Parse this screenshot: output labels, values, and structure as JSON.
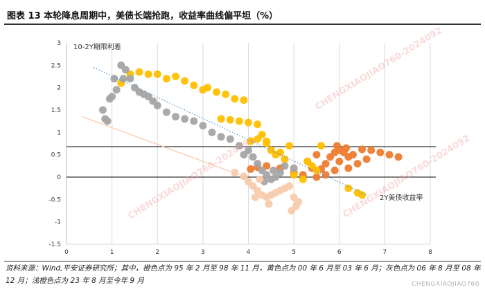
{
  "figure_title": "图表 13   本轮降息周期中，美债长端抢跑，收益率曲线偏平坦（%）",
  "source_note": "资料来源：Wind,平安证券研究所；其中，橙色点为 95 年 2 月至 98 年 11 月，黄色点为 00 年 6 月至 03 年 6 月；灰色点为 06 年 8 月至 08 年 12 月；浅橙色点为 23 年 8 月至今年 9 月",
  "footer_watermark": "CHENGXIAOJIAO760",
  "watermark_text": "CHENGXIAOJIAO760-2024092",
  "chart_data": {
    "type": "scatter",
    "ylabel": "10-2Y期限利差",
    "xlabel": "2Y美债收益率",
    "xlim": [
      0,
      8
    ],
    "ylim": [
      -1.5,
      3
    ],
    "x_ticks": [
      "0",
      "1",
      "2",
      "3",
      "4",
      "5",
      "6",
      "7",
      "8"
    ],
    "y_ticks": [
      "-1.5",
      "-1",
      "-0.5",
      "0",
      "0.5",
      "1",
      "1.5",
      "2",
      "2.5",
      "3"
    ],
    "grid": "vertical",
    "reference_line_y": 0.68,
    "series": [
      {
        "color": "#ED7D31",
        "points": [
          [
            4.05,
            0.18
          ],
          [
            4.2,
            0.22
          ],
          [
            4.4,
            0.25
          ],
          [
            4.7,
            0.2
          ],
          [
            5.0,
            0.1
          ],
          [
            5.2,
            0.05
          ],
          [
            5.5,
            0.0
          ],
          [
            5.6,
            0.18
          ],
          [
            5.7,
            0.3
          ],
          [
            5.8,
            0.45
          ],
          [
            5.9,
            0.55
          ],
          [
            6.0,
            0.6
          ],
          [
            6.1,
            0.55
          ],
          [
            6.2,
            0.45
          ],
          [
            6.3,
            0.5
          ],
          [
            6.5,
            0.62
          ],
          [
            6.7,
            0.6
          ],
          [
            6.9,
            0.55
          ],
          [
            7.1,
            0.5
          ],
          [
            7.3,
            0.45
          ],
          [
            6.0,
            0.35
          ],
          [
            6.2,
            0.2
          ],
          [
            5.9,
            0.15
          ],
          [
            5.7,
            0.05
          ],
          [
            5.4,
            0.2
          ],
          [
            5.3,
            0.35
          ],
          [
            5.5,
            0.5
          ],
          [
            6.4,
            0.3
          ],
          [
            6.6,
            0.4
          ],
          [
            5.95,
            0.7
          ],
          [
            6.15,
            0.65
          ]
        ]
      },
      {
        "color": "#FFC000",
        "points": [
          [
            1.2,
            2.1
          ],
          [
            1.4,
            2.3
          ],
          [
            1.6,
            2.35
          ],
          [
            1.8,
            2.3
          ],
          [
            2.0,
            2.3
          ],
          [
            2.2,
            2.2
          ],
          [
            2.4,
            2.25
          ],
          [
            2.6,
            2.15
          ],
          [
            2.8,
            2.05
          ],
          [
            3.0,
            1.95
          ],
          [
            3.1,
            2.0
          ],
          [
            3.3,
            1.9
          ],
          [
            3.5,
            1.85
          ],
          [
            3.7,
            1.75
          ],
          [
            3.9,
            1.72
          ],
          [
            3.4,
            1.3
          ],
          [
            3.6,
            1.28
          ],
          [
            3.8,
            1.25
          ],
          [
            4.0,
            1.22
          ],
          [
            4.2,
            1.18
          ],
          [
            4.05,
            0.8
          ],
          [
            4.2,
            0.85
          ],
          [
            4.4,
            0.8
          ],
          [
            4.5,
            0.6
          ],
          [
            4.6,
            0.5
          ],
          [
            4.7,
            0.55
          ],
          [
            4.8,
            0.4
          ],
          [
            5.3,
            0.35
          ],
          [
            5.4,
            0.25
          ],
          [
            5.5,
            0.15
          ],
          [
            5.0,
            0.05
          ],
          [
            5.2,
            -0.05
          ],
          [
            6.2,
            -0.25
          ],
          [
            6.4,
            -0.35
          ],
          [
            6.5,
            -0.4
          ],
          [
            4.9,
            0.7
          ],
          [
            5.6,
            0.7
          ],
          [
            4.3,
            0.95
          ],
          [
            4.4,
            0.75
          ]
        ]
      },
      {
        "color": "#A5A5A5",
        "points": [
          [
            0.8,
            1.5
          ],
          [
            0.85,
            1.3
          ],
          [
            0.9,
            1.25
          ],
          [
            0.95,
            1.75
          ],
          [
            1.0,
            1.8
          ],
          [
            1.1,
            1.95
          ],
          [
            1.2,
            2.5
          ],
          [
            1.3,
            2.4
          ],
          [
            1.4,
            2.2
          ],
          [
            1.5,
            2.0
          ],
          [
            1.6,
            1.9
          ],
          [
            1.7,
            1.85
          ],
          [
            1.8,
            1.8
          ],
          [
            1.9,
            1.7
          ],
          [
            2.0,
            1.6
          ],
          [
            2.2,
            1.45
          ],
          [
            2.4,
            1.35
          ],
          [
            2.6,
            1.3
          ],
          [
            2.8,
            1.25
          ],
          [
            3.0,
            1.15
          ],
          [
            3.2,
            1.0
          ],
          [
            3.4,
            0.9
          ],
          [
            3.6,
            0.85
          ],
          [
            3.8,
            0.7
          ],
          [
            4.0,
            0.6
          ],
          [
            4.1,
            0.45
          ],
          [
            4.2,
            0.3
          ],
          [
            4.3,
            0.15
          ],
          [
            4.4,
            0.05
          ],
          [
            4.5,
            -0.05
          ],
          [
            4.6,
            0.0
          ],
          [
            4.7,
            0.1
          ],
          [
            4.8,
            0.25
          ],
          [
            5.0,
            0.2
          ],
          [
            3.9,
            0.5
          ],
          [
            4.35,
            -0.1
          ],
          [
            4.55,
            0.15
          ],
          [
            1.05,
            2.2
          ],
          [
            1.25,
            2.2
          ]
        ]
      },
      {
        "color": "#F8CBAD",
        "points": [
          [
            3.7,
            0.1
          ],
          [
            3.9,
            0.02
          ],
          [
            4.0,
            -0.1
          ],
          [
            4.1,
            -0.2
          ],
          [
            4.2,
            -0.3
          ],
          [
            4.3,
            -0.4
          ],
          [
            4.4,
            -0.45
          ],
          [
            4.5,
            -0.4
          ],
          [
            4.6,
            -0.35
          ],
          [
            4.7,
            -0.3
          ],
          [
            4.8,
            -0.25
          ],
          [
            4.9,
            -0.2
          ],
          [
            5.0,
            -0.45
          ],
          [
            5.1,
            -0.55
          ],
          [
            4.95,
            -0.75
          ],
          [
            5.05,
            -0.65
          ],
          [
            4.45,
            -0.6
          ],
          [
            4.25,
            -0.05
          ],
          [
            4.15,
            -0.45
          ]
        ]
      }
    ],
    "trendlines": [
      {
        "color": "#5B9BD5",
        "style": "dotted",
        "from": [
          0.6,
          2.45
        ],
        "to": [
          6.6,
          -0.4
        ]
      },
      {
        "color": "#F8CBAD",
        "style": "solid",
        "from": [
          0.35,
          1.35
        ],
        "to": [
          3.8,
          0.05
        ]
      }
    ]
  }
}
